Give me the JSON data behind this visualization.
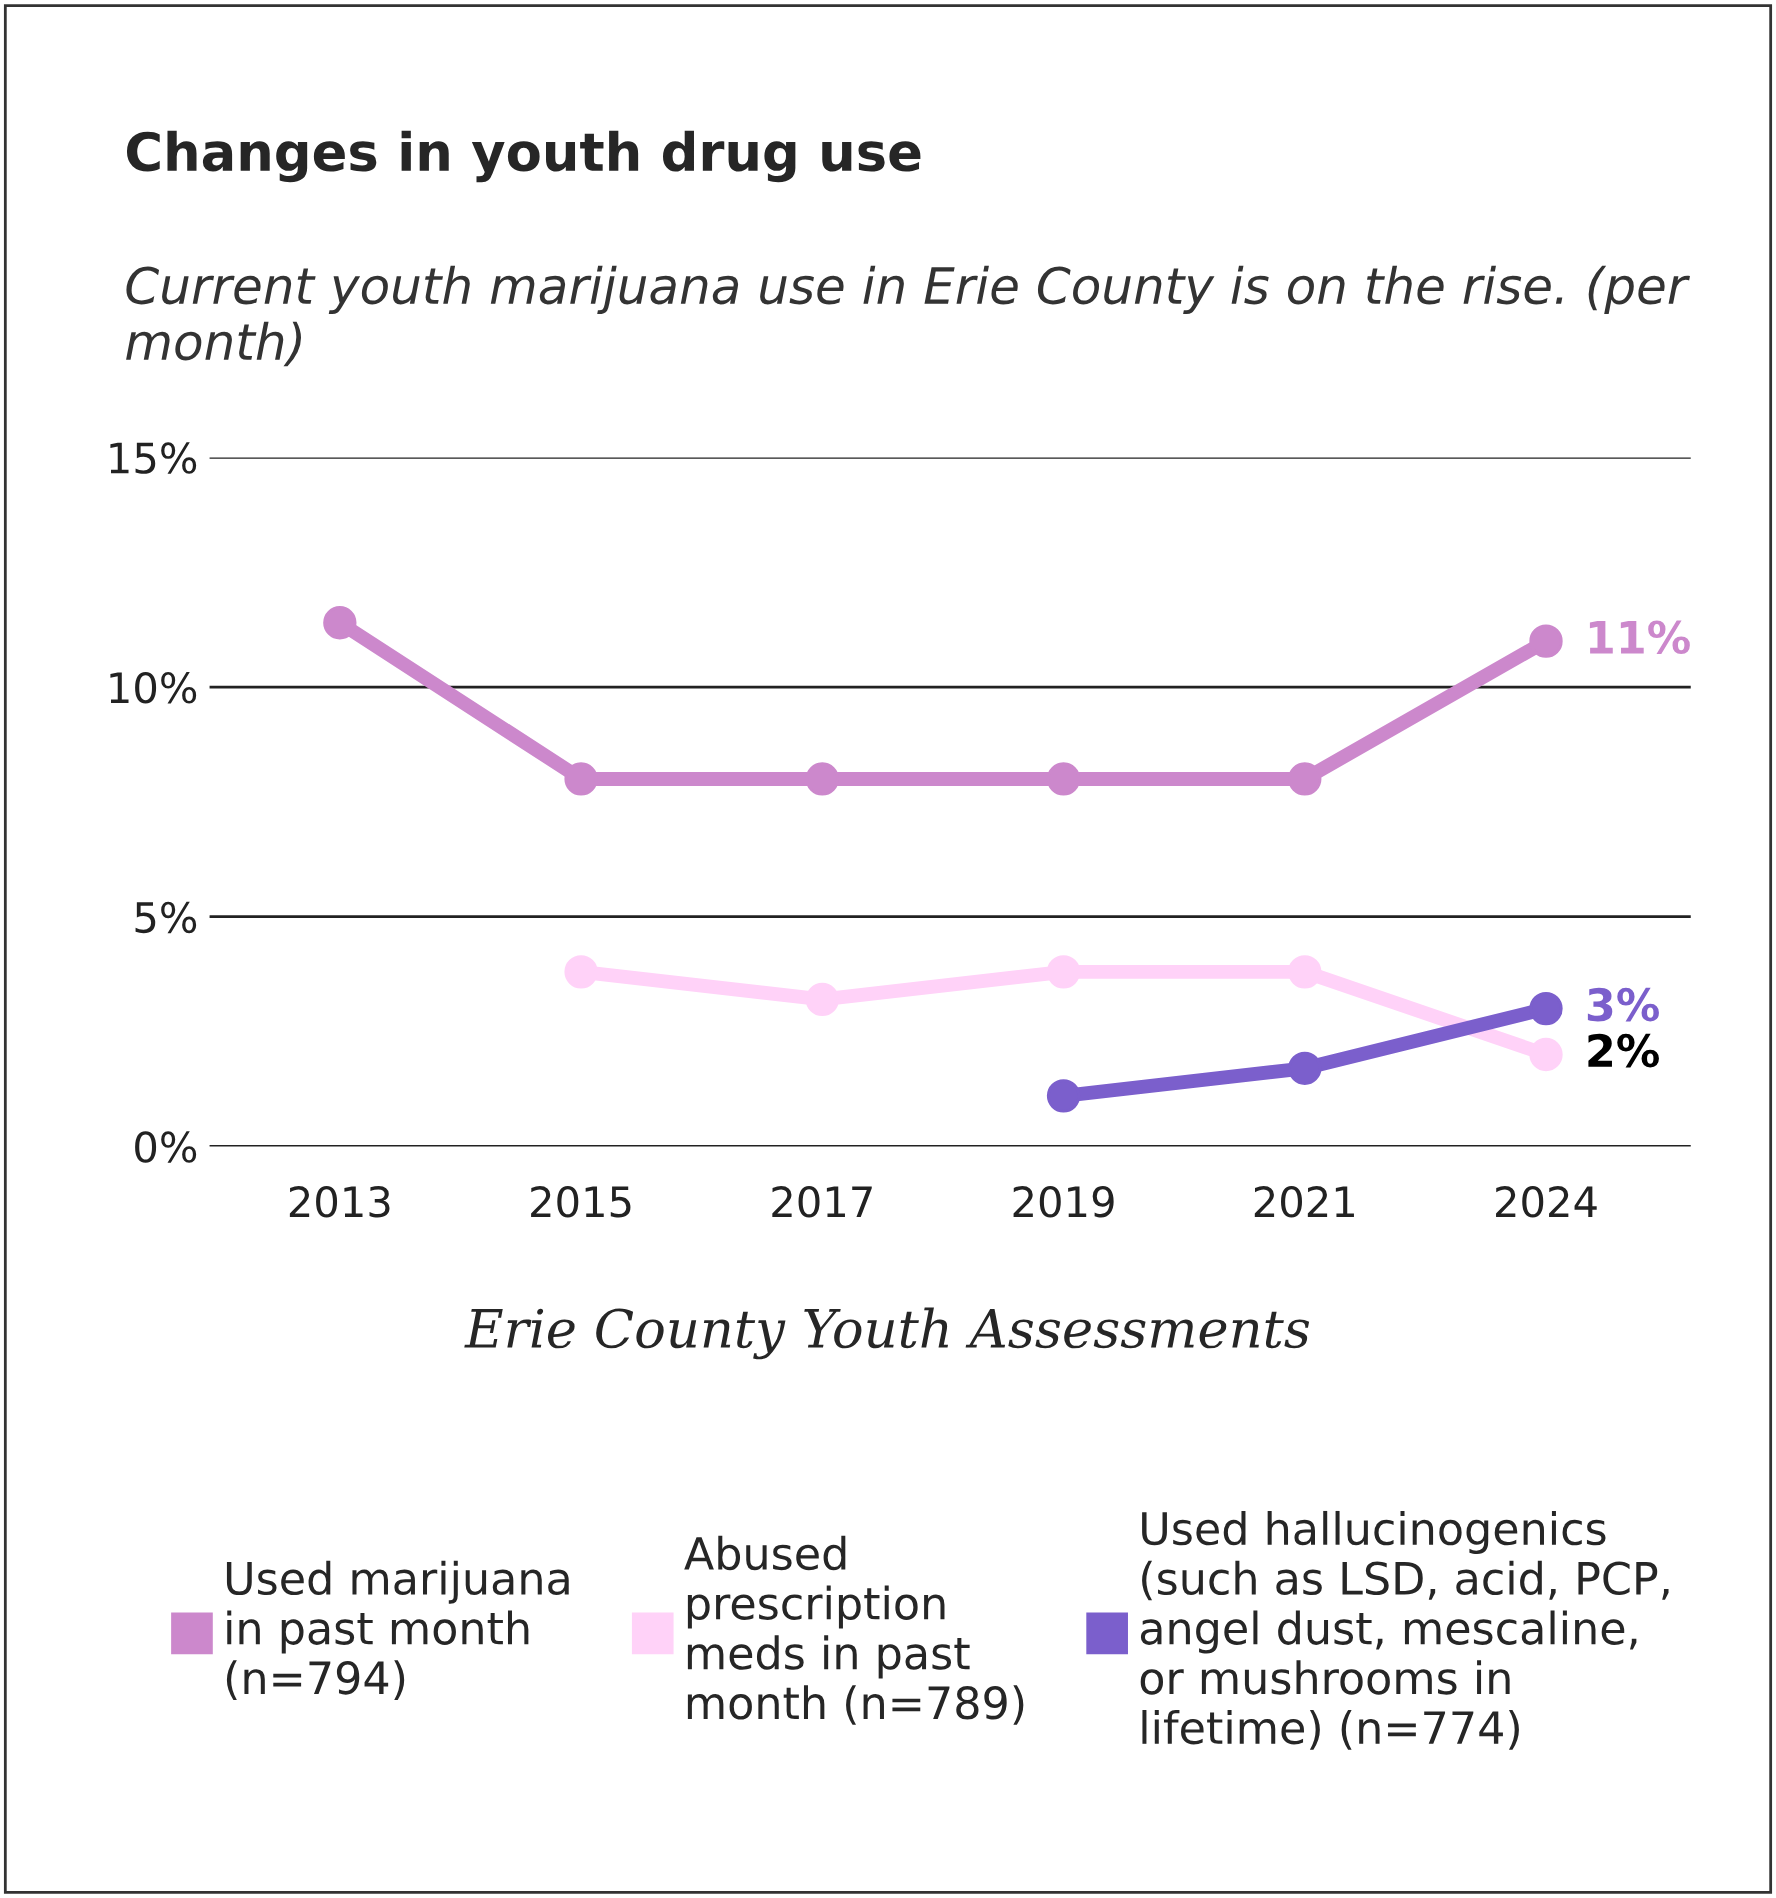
{
  "chart_data": {
    "type": "line",
    "title": "Changes in youth drug use",
    "subtitle": "Current youth marijuana use in Erie County is on the rise. (per month)",
    "categories": [
      "2013",
      "2015",
      "2017",
      "2019",
      "2021",
      "2024"
    ],
    "series": [
      {
        "name": "Used marijuana\nin past month\n(n=794)",
        "color": "#cc88cc",
        "values": [
          11.4,
          8,
          8,
          8,
          8,
          11
        ],
        "value_labels": [
          null,
          null,
          null,
          null,
          null,
          "11%"
        ]
      },
      {
        "name": "Abused\nprescription\nmeds in past\nmonth (n=789)",
        "color": "#ffd2f8",
        "values": [
          null,
          3.8,
          3.2,
          3.8,
          3.8,
          2
        ],
        "value_labels": [
          null,
          null,
          null,
          null,
          null,
          "2%"
        ]
      },
      {
        "name": "Used hallucinogenics\n(such as LSD, acid, PCP,\nangel dust, mescaline,\nor mushrooms in\nlifetime) (n=774)",
        "color": "#7b5fcc",
        "values": [
          null,
          null,
          null,
          1.1,
          1.7,
          3
        ],
        "value_labels": [
          null,
          null,
          null,
          null,
          null,
          "3%"
        ]
      }
    ],
    "ylim": [
      0,
      15
    ],
    "yticks": [
      {
        "value": 0,
        "label": "0%"
      },
      {
        "value": 5,
        "label": "5%"
      },
      {
        "value": 10,
        "label": "10%"
      },
      {
        "value": 15,
        "label": "15%"
      }
    ],
    "grid": "y",
    "marker": "circle",
    "line_style": "solid",
    "legend": "bottom",
    "annotations": [
      "Erie County Youth Assessments"
    ]
  }
}
